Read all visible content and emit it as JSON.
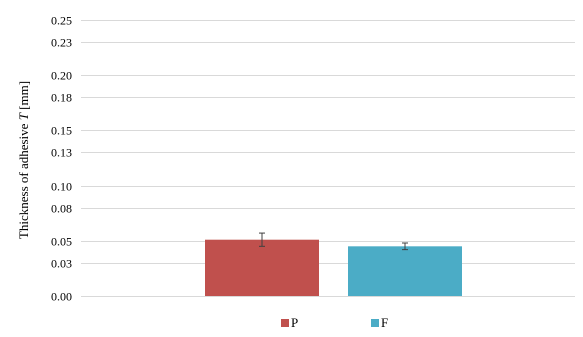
{
  "chart_data": {
    "type": "bar",
    "categories": [
      ""
    ],
    "series": [
      {
        "name": "P",
        "values": [
          0.051
        ],
        "error": [
          0.006
        ],
        "color": "#c0504d"
      },
      {
        "name": "F",
        "values": [
          0.045
        ],
        "error": [
          0.003
        ],
        "color": "#4bacc6"
      }
    ],
    "ylabel_prefix": "Thickness of adhesive ",
    "ylabel_var": "T",
    "ylabel_suffix": " [mm]",
    "ylim": [
      0,
      0.25
    ],
    "yticks": [
      0.0,
      0.03,
      0.05,
      0.08,
      0.1,
      0.13,
      0.15,
      0.18,
      0.2,
      0.23,
      0.25
    ],
    "ytick_labels": [
      "0.00",
      "0.03",
      "0.05",
      "0.08",
      "0.10",
      "0.13",
      "0.15",
      "0.18",
      "0.20",
      "0.23",
      "0.25"
    ],
    "grid": true,
    "legend_position": "bottom"
  }
}
